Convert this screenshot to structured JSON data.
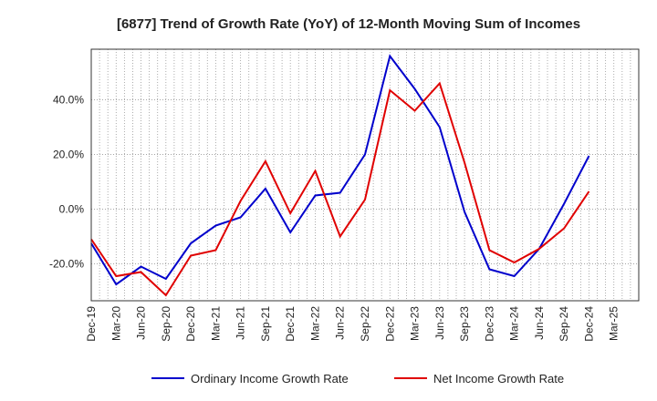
{
  "chart_data": {
    "type": "line",
    "title": "[6877]  Trend of Growth Rate (YoY) of 12-Month Moving Sum of Incomes",
    "xlabel": "",
    "ylabel": "",
    "x": [
      "Dec-19",
      "Mar-20",
      "Jun-20",
      "Sep-20",
      "Dec-20",
      "Mar-21",
      "Jun-21",
      "Sep-21",
      "Dec-21",
      "Mar-22",
      "Jun-22",
      "Sep-22",
      "Dec-22",
      "Mar-23",
      "Jun-23",
      "Sep-23",
      "Dec-23",
      "Mar-24",
      "Jun-24",
      "Sep-24",
      "Dec-24",
      "Mar-25"
    ],
    "yticks": [
      -20,
      0,
      20,
      40
    ],
    "ytick_labels": [
      "-20.0%",
      "0.0%",
      "20.0%",
      "40.0%"
    ],
    "ylim": [
      -33.5,
      58.5
    ],
    "grid": true,
    "legend_position": "bottom",
    "series": [
      {
        "name": "Ordinary Income Growth Rate",
        "color": "#0000cc",
        "values": [
          -12.5,
          -27.5,
          -21.0,
          -25.5,
          -12.5,
          -6.0,
          -3.0,
          7.5,
          -8.5,
          5.0,
          6.0,
          20.0,
          56.0,
          44.0,
          30.0,
          -1.0,
          -22.0,
          -24.5,
          -14.5,
          2.0,
          19.5,
          null
        ]
      },
      {
        "name": "Net Income Growth Rate",
        "color": "#e00000",
        "values": [
          -11.0,
          -24.5,
          -23.0,
          -31.5,
          -17.0,
          -15.0,
          3.0,
          17.5,
          -1.5,
          14.0,
          -10.0,
          3.5,
          43.5,
          36.0,
          46.0,
          17.0,
          -15.0,
          -19.5,
          -14.5,
          -7.0,
          6.5,
          null
        ]
      }
    ]
  }
}
